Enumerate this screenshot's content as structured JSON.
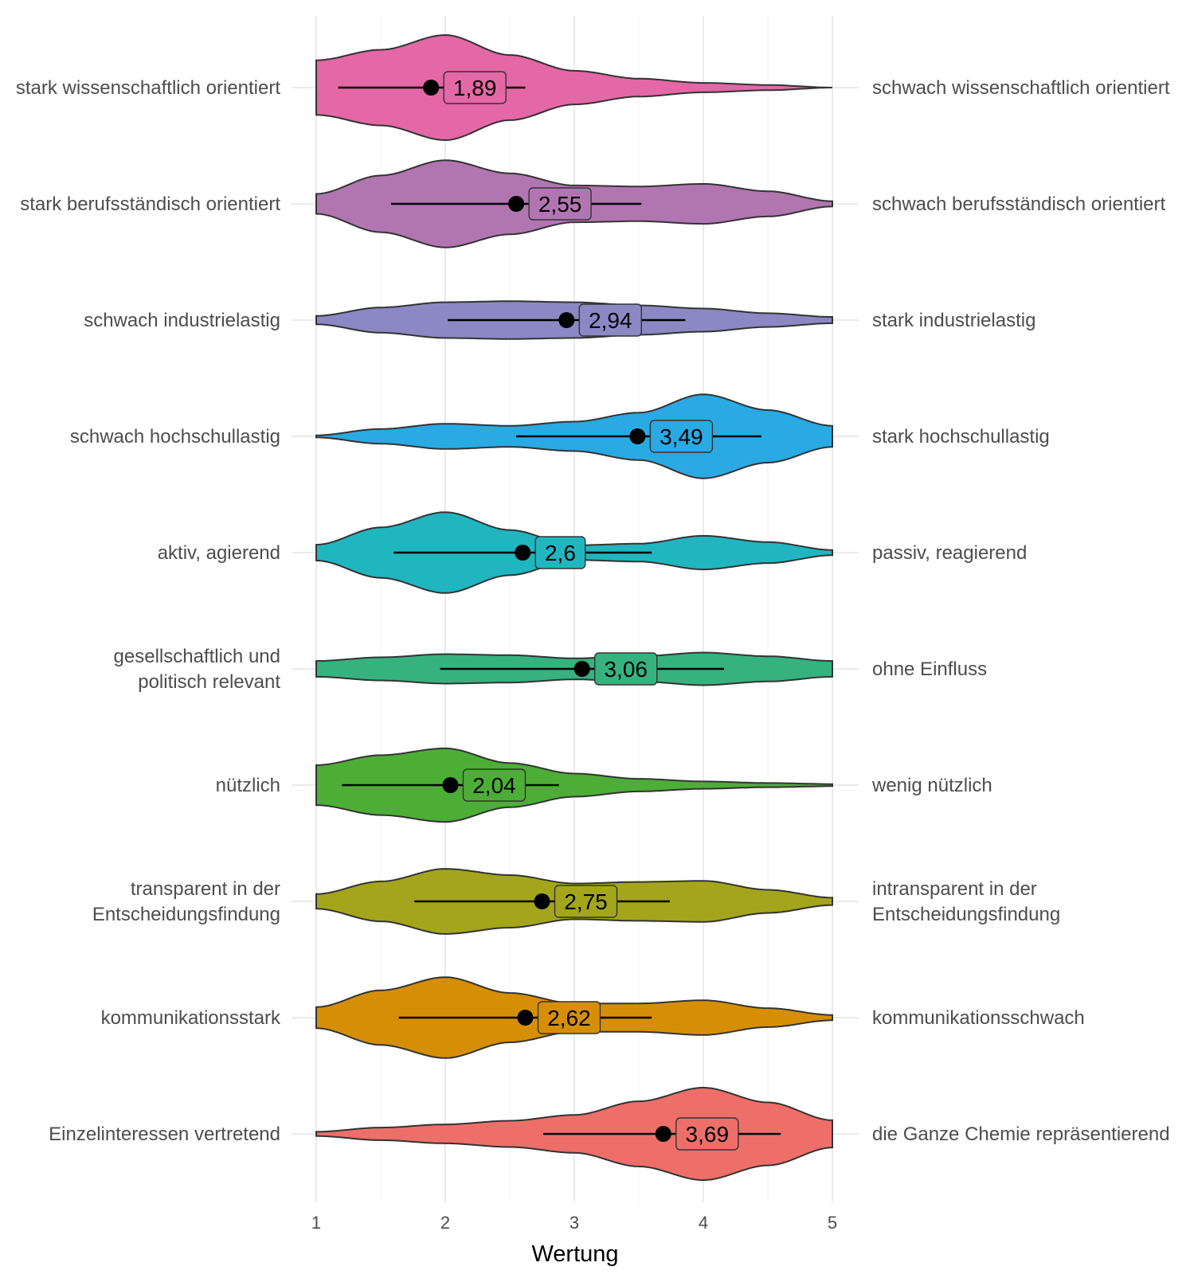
{
  "chart_data": {
    "type": "violin",
    "xlabel": "Wertung",
    "xlim": [
      1,
      5
    ],
    "x_ticks": [
      "1",
      "2",
      "3",
      "4",
      "5"
    ],
    "grid": true,
    "rows": [
      {
        "left_label": [
          "stark wissenschaftlich orientiert"
        ],
        "right_label": [
          "schwach wissenschaftlich orientiert"
        ],
        "mean": 1.89,
        "mean_label": "1,89",
        "ci": [
          1.17,
          2.62
        ],
        "color": "#E467A6",
        "density": [
          [
            1,
            0.52
          ],
          [
            1.5,
            0.72
          ],
          [
            2,
            1.0
          ],
          [
            2.5,
            0.62
          ],
          [
            3,
            0.32
          ],
          [
            3.5,
            0.17
          ],
          [
            4,
            0.09
          ],
          [
            4.5,
            0.05
          ],
          [
            5,
            0.0
          ]
        ]
      },
      {
        "left_label": [
          "stark berufsständisch orientiert"
        ],
        "right_label": [
          "schwach berufsständisch orientiert"
        ],
        "mean": 2.55,
        "mean_label": "2,55",
        "ci": [
          1.58,
          3.52
        ],
        "color": "#B176B1",
        "density": [
          [
            1,
            0.19
          ],
          [
            1.5,
            0.54
          ],
          [
            2,
            0.83
          ],
          [
            2.5,
            0.58
          ],
          [
            3,
            0.35
          ],
          [
            3.5,
            0.33
          ],
          [
            4,
            0.38
          ],
          [
            4.5,
            0.24
          ],
          [
            5,
            0.05
          ]
        ]
      },
      {
        "left_label": [
          "schwach industrielastig"
        ],
        "right_label": [
          "stark industrielastig"
        ],
        "mean": 2.94,
        "mean_label": "2,94",
        "ci": [
          2.02,
          3.86
        ],
        "color": "#8B88C3",
        "density": [
          [
            1,
            0.08
          ],
          [
            1.5,
            0.24
          ],
          [
            2,
            0.34
          ],
          [
            2.5,
            0.36
          ],
          [
            3,
            0.34
          ],
          [
            3.5,
            0.28
          ],
          [
            4,
            0.22
          ],
          [
            4.5,
            0.13
          ],
          [
            5,
            0.06
          ]
        ]
      },
      {
        "left_label": [
          "schwach hochschullastig"
        ],
        "right_label": [
          "stark hochschullastig"
        ],
        "mean": 3.49,
        "mean_label": "3,49",
        "ci": [
          2.55,
          4.45
        ],
        "color": "#29AAE2",
        "density": [
          [
            1,
            0.02
          ],
          [
            1.5,
            0.14
          ],
          [
            2,
            0.24
          ],
          [
            2.5,
            0.2
          ],
          [
            3,
            0.28
          ],
          [
            3.5,
            0.45
          ],
          [
            4,
            0.8
          ],
          [
            4.5,
            0.5
          ],
          [
            5,
            0.2
          ]
        ]
      },
      {
        "left_label": [
          "aktiv, agierend"
        ],
        "right_label": [
          "passiv, reagierend"
        ],
        "mean": 2.6,
        "mean_label": "2,6",
        "ci": [
          1.6,
          3.6
        ],
        "color": "#1FB6BF",
        "density": [
          [
            1,
            0.15
          ],
          [
            1.5,
            0.48
          ],
          [
            2,
            0.77
          ],
          [
            2.5,
            0.43
          ],
          [
            3,
            0.14
          ],
          [
            3.5,
            0.17
          ],
          [
            4,
            0.32
          ],
          [
            4.5,
            0.2
          ],
          [
            5,
            0.05
          ]
        ]
      },
      {
        "left_label": [
          "gesellschaftlich und",
          "politisch relevant"
        ],
        "right_label": [
          "ohne Einfluss"
        ],
        "mean": 3.06,
        "mean_label": "3,06",
        "ci": [
          1.96,
          4.16
        ],
        "color": "#36B27E",
        "density": [
          [
            1,
            0.15
          ],
          [
            1.5,
            0.22
          ],
          [
            2,
            0.28
          ],
          [
            2.5,
            0.26
          ],
          [
            3,
            0.2
          ],
          [
            3.5,
            0.24
          ],
          [
            4,
            0.31
          ],
          [
            4.5,
            0.24
          ],
          [
            5,
            0.15
          ]
        ]
      },
      {
        "left_label": [
          "nützlich"
        ],
        "right_label": [
          "wenig nützlich"
        ],
        "mean": 2.04,
        "mean_label": "2,04",
        "ci": [
          1.2,
          2.88
        ],
        "color": "#4DAE37",
        "density": [
          [
            1,
            0.38
          ],
          [
            1.5,
            0.57
          ],
          [
            2,
            0.7
          ],
          [
            2.5,
            0.42
          ],
          [
            3,
            0.22
          ],
          [
            3.5,
            0.12
          ],
          [
            4,
            0.07
          ],
          [
            4.5,
            0.04
          ],
          [
            5,
            0.02
          ]
        ]
      },
      {
        "left_label": [
          "transparent in der",
          "Entscheidungsfindung"
        ],
        "right_label": [
          "intransparent in der",
          "Entscheidungsfindung"
        ],
        "mean": 2.75,
        "mean_label": "2,75",
        "ci": [
          1.76,
          3.74
        ],
        "color": "#A3A61A",
        "density": [
          [
            1,
            0.14
          ],
          [
            1.5,
            0.38
          ],
          [
            2,
            0.62
          ],
          [
            2.5,
            0.5
          ],
          [
            3,
            0.34
          ],
          [
            3.5,
            0.37
          ],
          [
            4,
            0.39
          ],
          [
            4.5,
            0.22
          ],
          [
            5,
            0.07
          ]
        ]
      },
      {
        "left_label": [
          "kommunikationsstark"
        ],
        "right_label": [
          "kommunikationsschwach"
        ],
        "mean": 2.62,
        "mean_label": "2,62",
        "ci": [
          1.64,
          3.6
        ],
        "color": "#D68F05",
        "density": [
          [
            1,
            0.2
          ],
          [
            1.5,
            0.52
          ],
          [
            2,
            0.77
          ],
          [
            2.5,
            0.47
          ],
          [
            3,
            0.27
          ],
          [
            3.5,
            0.27
          ],
          [
            4,
            0.33
          ],
          [
            4.5,
            0.18
          ],
          [
            5,
            0.05
          ]
        ]
      },
      {
        "left_label": [
          "Einzelinteressen vertretend"
        ],
        "right_label": [
          "die Ganze Chemie repräsentierend"
        ],
        "mean": 3.69,
        "mean_label": "3,69",
        "ci": [
          2.76,
          4.6
        ],
        "color": "#EE6F69",
        "density": [
          [
            1,
            0.04
          ],
          [
            1.5,
            0.12
          ],
          [
            2,
            0.18
          ],
          [
            2.5,
            0.25
          ],
          [
            3,
            0.36
          ],
          [
            3.5,
            0.62
          ],
          [
            4,
            0.88
          ],
          [
            4.5,
            0.6
          ],
          [
            5,
            0.26
          ]
        ]
      }
    ]
  }
}
